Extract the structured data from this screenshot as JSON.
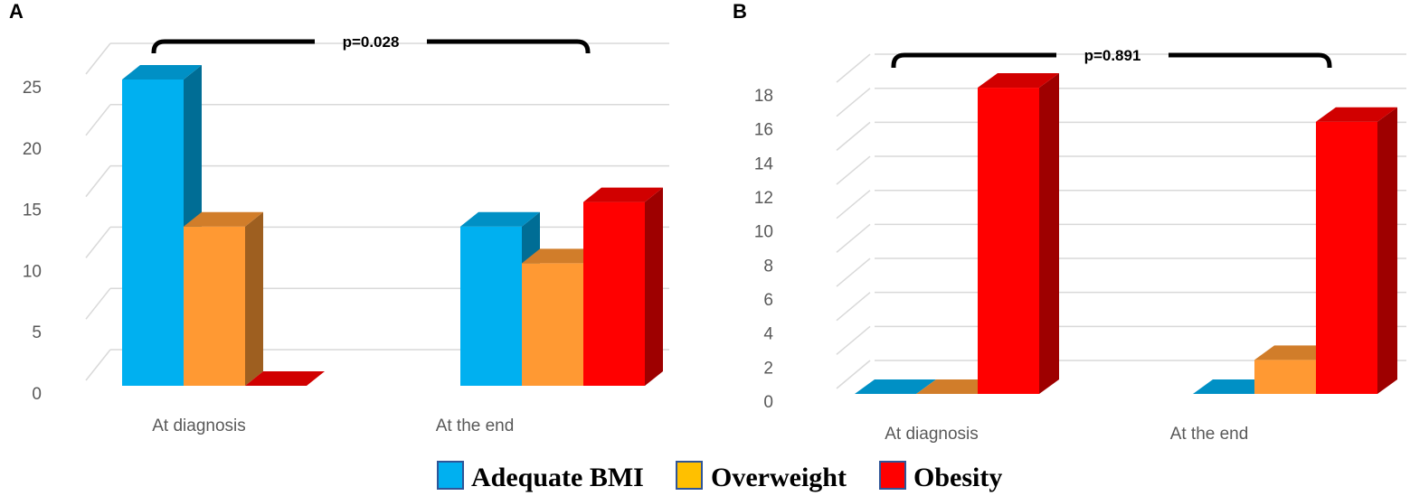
{
  "legend": {
    "items": [
      {
        "label": "Adequate BMI",
        "color": "#00B0F0"
      },
      {
        "label": "Overweight",
        "color": "#FFC000"
      },
      {
        "label": "Obesity",
        "color": "#FF0000"
      }
    ]
  },
  "chart_data": [
    {
      "type": "bar",
      "panel_label": "A",
      "categories": [
        "At diagnosis",
        "At the end"
      ],
      "series": [
        {
          "name": "Adequate BMI",
          "values": [
            25,
            13
          ],
          "color": "#00B0F0"
        },
        {
          "name": "Overweight",
          "values": [
            13,
            10
          ],
          "color": "#FF9933"
        },
        {
          "name": "Obesity",
          "values": [
            0,
            15
          ],
          "color": "#FF0000"
        }
      ],
      "yticks": [
        0,
        5,
        10,
        15,
        20,
        25
      ],
      "ylim": [
        0,
        25
      ],
      "annotation": "p=0.028",
      "title": "",
      "xlabel": "",
      "ylabel": "",
      "grid": true
    },
    {
      "type": "bar",
      "panel_label": "B",
      "categories": [
        "At diagnosis",
        "At the end"
      ],
      "series": [
        {
          "name": "Adequate BMI",
          "values": [
            0,
            0
          ],
          "color": "#00B0F0"
        },
        {
          "name": "Overweight",
          "values": [
            0,
            2
          ],
          "color": "#FF9933"
        },
        {
          "name": "Obesity",
          "values": [
            18,
            16
          ],
          "color": "#FF0000"
        }
      ],
      "yticks": [
        0,
        2,
        4,
        6,
        8,
        10,
        12,
        14,
        16,
        18
      ],
      "ylim": [
        0,
        18
      ],
      "annotation": "p=0.891",
      "title": "",
      "xlabel": "",
      "ylabel": "",
      "grid": true
    }
  ]
}
